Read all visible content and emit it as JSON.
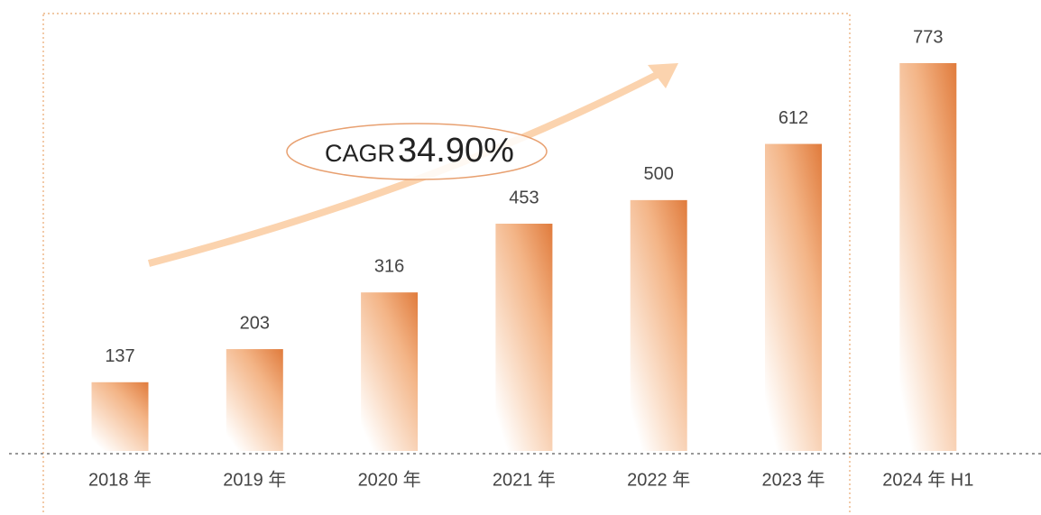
{
  "chart_data": {
    "type": "bar",
    "categories": [
      "2018 年",
      "2019 年",
      "2020 年",
      "2021 年",
      "2022 年",
      "2023 年",
      "2024 年 H1"
    ],
    "values": [
      137,
      203,
      316,
      453,
      500,
      612,
      773
    ],
    "color": "#e07b3c",
    "annotation": {
      "label": "CAGR",
      "value": "34.90%"
    }
  }
}
